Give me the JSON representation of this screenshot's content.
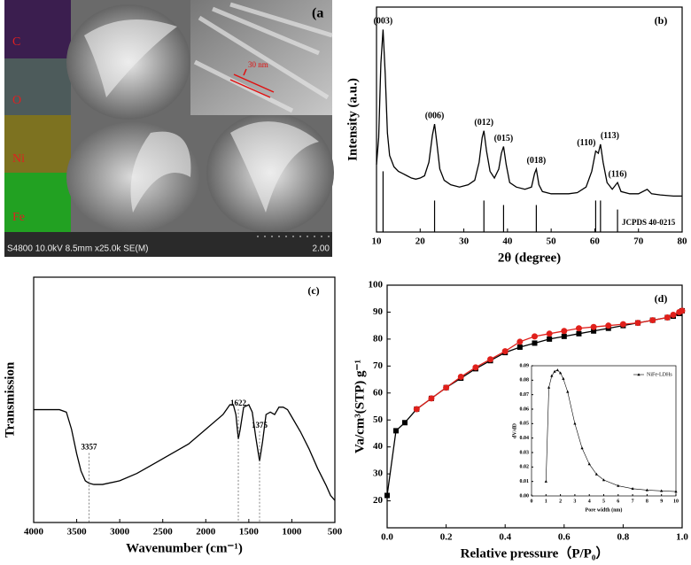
{
  "image_panel": {
    "label": "(a",
    "maps": [
      "C",
      "O",
      "Ni",
      "Fe"
    ],
    "inset_scale": "30 nm",
    "footer": "S4800 10.0kV 8.5mm x25.0k SE(M)",
    "scale_bar": "2.00"
  },
  "chart_data": [
    {
      "type": "line",
      "title": "(b)",
      "xlabel": "2θ (degree)",
      "ylabel": "Intensity (a.u.)",
      "xlim": [
        10,
        80
      ],
      "ylim": [
        0,
        100
      ],
      "xticks": [
        10,
        20,
        30,
        40,
        50,
        60,
        70,
        80
      ],
      "series": [
        {
          "color": "#000000",
          "x": [
            10,
            10.5,
            11,
            11.5,
            12,
            12.5,
            13,
            14,
            15,
            16,
            17,
            18,
            19,
            20,
            21,
            22,
            22.8,
            23.3,
            23.8,
            24.5,
            25.5,
            27,
            29,
            31,
            32.5,
            33.5,
            34.2,
            34.6,
            35.2,
            36,
            37,
            38,
            38.6,
            39.1,
            39.7,
            40.5,
            42,
            44,
            45.5,
            46.2,
            46.6,
            47.2,
            48,
            50,
            52,
            54,
            56,
            58,
            59.3,
            60.2,
            60.8,
            61.3,
            61.9,
            62.8,
            64,
            65.2,
            66,
            68,
            70,
            72,
            73,
            75,
            78,
            80
          ],
          "values": [
            30,
            42,
            75,
            90,
            70,
            44,
            34,
            29,
            27,
            26,
            25,
            24,
            23.5,
            24,
            25,
            31,
            43,
            48,
            40,
            28,
            23,
            21,
            20,
            21,
            23,
            31,
            42,
            45,
            36,
            27,
            24,
            28,
            35,
            38,
            30,
            22,
            20,
            19,
            20,
            26,
            28,
            21,
            18,
            17,
            17,
            17,
            17.5,
            20,
            27,
            36,
            35,
            39,
            31,
            22,
            19,
            22,
            18,
            17,
            17,
            19,
            17,
            16.5,
            16,
            16
          ]
        }
      ],
      "peak_labels": [
        {
          "text": "(003)",
          "x": 11.5
        },
        {
          "text": "(006)",
          "x": 23.3
        },
        {
          "text": "(012)",
          "x": 34.6
        },
        {
          "text": "(015)",
          "x": 39.1
        },
        {
          "text": "(018)",
          "x": 46.6
        },
        {
          "text": "(110)",
          "x": 60.2
        },
        {
          "text": "(113)",
          "x": 61.3
        },
        {
          "text": "(116)",
          "x": 65.2
        }
      ],
      "reference": {
        "name": "JCPDS 40-0215",
        "color": "#000000",
        "x": [
          11.5,
          23.3,
          34.6,
          39.1,
          46.6,
          60.2,
          61.3,
          65.2
        ],
        "values": [
          27,
          14,
          14,
          12,
          12,
          14,
          14,
          10
        ]
      }
    },
    {
      "type": "line",
      "title": "(c)",
      "xlabel": "Wavenumber (cm⁻¹)",
      "ylabel": "Transmission",
      "xlim": [
        4000,
        500
      ],
      "ylim": [
        0,
        100
      ],
      "xticks": [
        4000,
        3500,
        3000,
        2500,
        2000,
        1500,
        1000,
        500
      ],
      "series": [
        {
          "color": "#000000",
          "x": [
            4000,
            3700,
            3620,
            3560,
            3500,
            3450,
            3400,
            3357,
            3300,
            3200,
            3000,
            2800,
            2600,
            2400,
            2200,
            2000,
            1800,
            1720,
            1680,
            1650,
            1622,
            1600,
            1560,
            1500,
            1460,
            1420,
            1375,
            1340,
            1300,
            1250,
            1200,
            1150,
            1100,
            1050,
            1000,
            900,
            800,
            700,
            600,
            550,
            500
          ],
          "values": [
            46,
            46,
            45,
            38,
            28,
            21,
            17,
            16,
            15.5,
            15.5,
            17,
            20,
            24,
            28,
            32,
            38,
            44,
            48,
            48,
            44,
            34,
            38,
            47,
            48,
            45,
            35,
            25,
            33,
            44,
            45,
            44,
            47,
            47,
            46,
            43,
            37,
            30,
            22,
            15,
            11,
            9
          ]
        }
      ],
      "peaks": [
        3357,
        1622,
        1375
      ]
    },
    {
      "type": "line",
      "title": "(d)",
      "xlabel": "Relative pressure（P/P₀）",
      "ylabel": "Va/cm³(STP) g⁻¹",
      "xlim": [
        0,
        1
      ],
      "ylim": [
        10,
        100
      ],
      "xticks": [
        {
          "value": 0,
          "label": "0.0"
        },
        0.2,
        0.4,
        0.6,
        0.8,
        {
          "value": 1,
          "label": "1.0"
        }
      ],
      "yticks": [
        20,
        30,
        40,
        50,
        60,
        70,
        80,
        90,
        100
      ],
      "series": [
        {
          "color": "#000000",
          "marker": "square",
          "x": [
            0,
            0.03,
            0.06,
            0.1,
            0.15,
            0.2,
            0.25,
            0.3,
            0.35,
            0.4,
            0.45,
            0.5,
            0.55,
            0.6,
            0.65,
            0.7,
            0.75,
            0.8,
            0.85,
            0.9,
            0.95,
            0.97,
            0.99,
            1
          ],
          "values": [
            22,
            46,
            49,
            54,
            58,
            62,
            65.5,
            69,
            72,
            75,
            77,
            78.5,
            80,
            81,
            82,
            83,
            84,
            85,
            86,
            87,
            88,
            88.5,
            89.5,
            90.5
          ]
        },
        {
          "color": "#e0201b",
          "marker": "circle",
          "x": [
            0.1,
            0.15,
            0.2,
            0.25,
            0.3,
            0.35,
            0.4,
            0.45,
            0.5,
            0.55,
            0.6,
            0.65,
            0.7,
            0.75,
            0.8,
            0.85,
            0.9,
            0.95,
            0.97,
            0.99,
            1
          ],
          "values": [
            54,
            58,
            62,
            66,
            69.5,
            72.5,
            75.5,
            79,
            81,
            82,
            83,
            84,
            84.5,
            85,
            85.5,
            86,
            87,
            88,
            89,
            90,
            90.5
          ]
        }
      ]
    },
    {
      "type": "line",
      "xlabel": "Pore width (nm)",
      "ylabel": "dV/dD",
      "legend": "upper right",
      "xlim": [
        0,
        10
      ],
      "ylim": [
        0,
        0.09
      ],
      "xticks": [
        0,
        1,
        2,
        3,
        4,
        5,
        6,
        7,
        8,
        9,
        10
      ],
      "yticks": [
        {
          "value": 0,
          "label": "0.00"
        },
        0.01,
        0.02,
        0.03,
        0.04,
        0.05,
        0.06,
        0.07,
        0.08,
        0.09
      ],
      "series": [
        {
          "name": "NiFe-LDHs",
          "color": "#000000",
          "marker": "triangle",
          "x": [
            1,
            1.2,
            1.4,
            1.6,
            1.8,
            2,
            2.2,
            2.5,
            3,
            3.5,
            4,
            4.5,
            5,
            6,
            7,
            8,
            9,
            10
          ],
          "values": [
            0.01,
            0.075,
            0.083,
            0.086,
            0.087,
            0.085,
            0.081,
            0.072,
            0.05,
            0.033,
            0.022,
            0.015,
            0.011,
            0.007,
            0.005,
            0.004,
            0.0035,
            0.003
          ]
        }
      ]
    }
  ]
}
